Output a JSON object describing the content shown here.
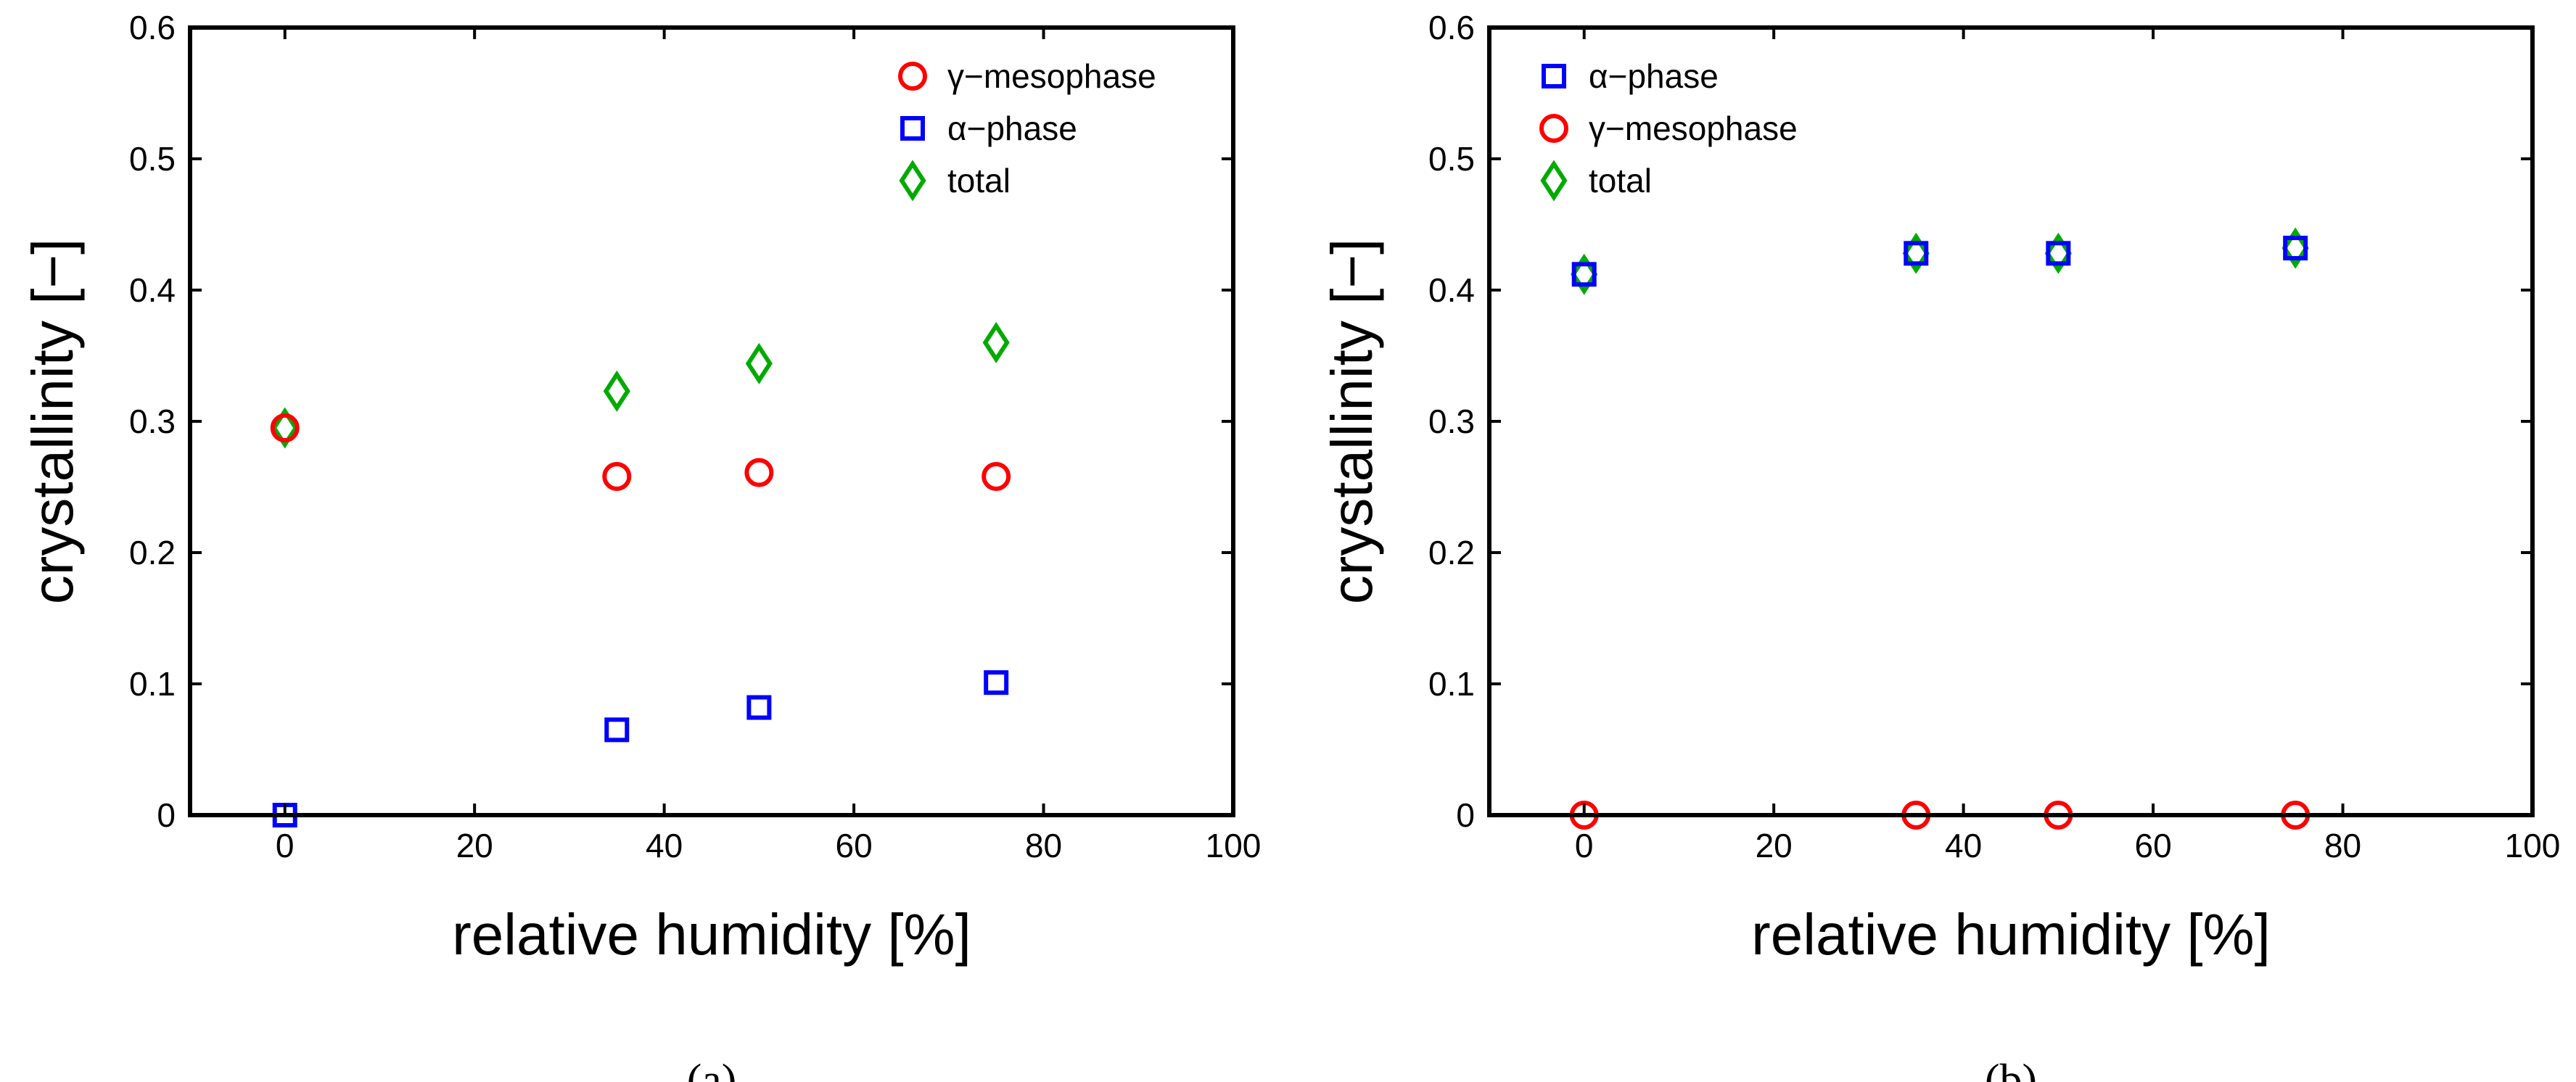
{
  "chart_data": [
    {
      "type": "scatter",
      "caption": "(a)",
      "xlabel": "relative humidity [%]",
      "ylabel": "crystallinity [−]",
      "xlim": [
        -10,
        100
      ],
      "ylim": [
        0,
        0.6
      ],
      "xticks": [
        0,
        20,
        40,
        60,
        80,
        100
      ],
      "xtick_labels": [
        "0",
        "20",
        "40",
        "60",
        "80",
        "100"
      ],
      "yticks": [
        0,
        0.1,
        0.2,
        0.3,
        0.4,
        0.5,
        0.6
      ],
      "ytick_labels": [
        "0",
        "0.1",
        "0.2",
        "0.3",
        "0.4",
        "0.5",
        "0.6"
      ],
      "legend_position": "top-right",
      "series": [
        {
          "name": "γ−mesophase",
          "marker": "circle",
          "color": "#ff0000",
          "x": [
            0,
            35,
            50,
            75
          ],
          "y": [
            0.295,
            0.258,
            0.261,
            0.258
          ]
        },
        {
          "name": "α−phase",
          "marker": "square",
          "color": "#0000ff",
          "x": [
            0,
            35,
            50,
            75
          ],
          "y": [
            0.0,
            0.065,
            0.082,
            0.101
          ]
        },
        {
          "name": "total",
          "marker": "diamond",
          "color": "#00aa00",
          "x": [
            0,
            35,
            50,
            75
          ],
          "y": [
            0.295,
            0.323,
            0.344,
            0.36
          ]
        }
      ]
    },
    {
      "type": "scatter",
      "caption": "(b)",
      "xlabel": "relative humidity [%]",
      "ylabel": "crystallinity [−]",
      "xlim": [
        -10,
        100
      ],
      "ylim": [
        0,
        0.6
      ],
      "xticks": [
        0,
        20,
        40,
        60,
        80,
        100
      ],
      "xtick_labels": [
        "0",
        "20",
        "40",
        "60",
        "80",
        "100"
      ],
      "yticks": [
        0,
        0.1,
        0.2,
        0.3,
        0.4,
        0.5,
        0.6
      ],
      "ytick_labels": [
        "0",
        "0.1",
        "0.2",
        "0.3",
        "0.4",
        "0.5",
        "0.6"
      ],
      "legend_position": "top-left",
      "series": [
        {
          "name": "α−phase",
          "marker": "square",
          "color": "#0000ff",
          "x": [
            0,
            35,
            50,
            75
          ],
          "y": [
            0.412,
            0.428,
            0.428,
            0.432
          ]
        },
        {
          "name": "γ−mesophase",
          "marker": "circle",
          "color": "#ff0000",
          "x": [
            0,
            35,
            50,
            75
          ],
          "y": [
            0.0,
            0.0,
            0.0,
            0.0
          ]
        },
        {
          "name": "total",
          "marker": "diamond",
          "color": "#00aa00",
          "x": [
            0,
            35,
            50,
            75
          ],
          "y": [
            0.412,
            0.428,
            0.428,
            0.432
          ]
        }
      ]
    }
  ]
}
